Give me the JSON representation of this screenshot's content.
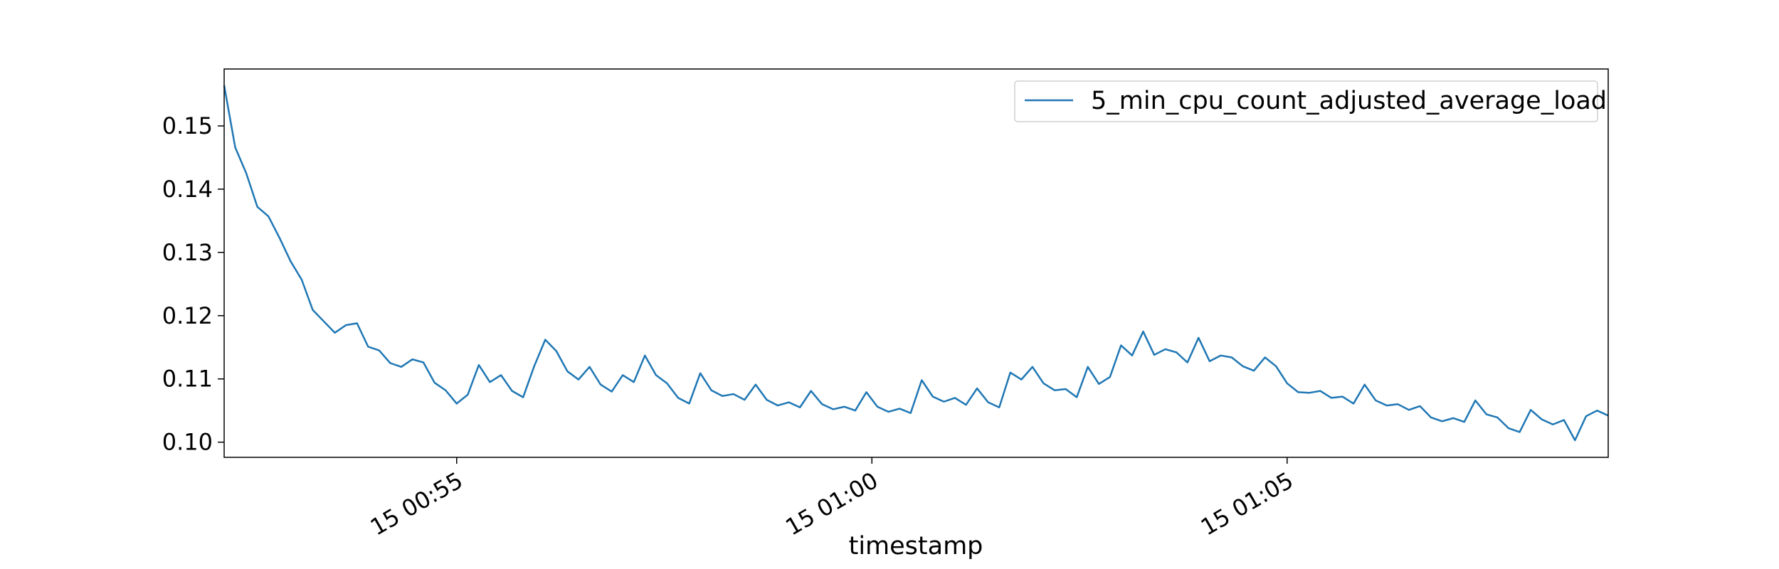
{
  "chart_data": {
    "type": "line",
    "title": "",
    "xlabel": "timestamp",
    "ylabel": "",
    "xlim": [
      "15 00:52:12",
      "15 01:08:52"
    ],
    "ylim": [
      0.0976,
      0.159
    ],
    "x_ticks": [
      {
        "value": "15 00:55:00",
        "label": "15 00:55"
      },
      {
        "value": "15 01:00:00",
        "label": "15 01:00"
      },
      {
        "value": "15 01:05:00",
        "label": "15 01:05"
      }
    ],
    "y_ticks": [
      0.1,
      0.11,
      0.12,
      0.13,
      0.14,
      0.15
    ],
    "y_tick_labels": [
      "0.10",
      "0.11",
      "0.12",
      "0.13",
      "0.14",
      "0.15"
    ],
    "grid": false,
    "legend_position": "top-right",
    "line_color": "#1f77b4",
    "x_start": "15 00:52:12",
    "x_step_seconds": 8,
    "series": [
      {
        "name": "5_min_cpu_count_adjusted_average_load",
        "values": [
          0.1564,
          0.1466,
          0.1425,
          0.1372,
          0.1357,
          0.1323,
          0.1286,
          0.1257,
          0.1209,
          0.1191,
          0.1173,
          0.1185,
          0.1188,
          0.1151,
          0.1145,
          0.1125,
          0.1119,
          0.1131,
          0.1126,
          0.1094,
          0.1082,
          0.1061,
          0.1075,
          0.1122,
          0.1095,
          0.1106,
          0.1081,
          0.1071,
          0.112,
          0.1162,
          0.1144,
          0.1112,
          0.1099,
          0.1119,
          0.1091,
          0.108,
          0.1106,
          0.1095,
          0.1137,
          0.1106,
          0.1093,
          0.107,
          0.1061,
          0.1109,
          0.1082,
          0.1073,
          0.1076,
          0.1067,
          0.1091,
          0.1067,
          0.1058,
          0.1063,
          0.1055,
          0.1081,
          0.106,
          0.1052,
          0.1056,
          0.105,
          0.1079,
          0.1056,
          0.1048,
          0.1053,
          0.1046,
          0.1098,
          0.1072,
          0.1064,
          0.107,
          0.1059,
          0.1085,
          0.1063,
          0.1055,
          0.111,
          0.1099,
          0.1119,
          0.1093,
          0.1082,
          0.1084,
          0.1071,
          0.1119,
          0.1092,
          0.1103,
          0.1153,
          0.1137,
          0.1175,
          0.1138,
          0.1147,
          0.1142,
          0.1126,
          0.1165,
          0.1128,
          0.1137,
          0.1134,
          0.112,
          0.1113,
          0.1134,
          0.112,
          0.1093,
          0.1079,
          0.1078,
          0.1081,
          0.107,
          0.1072,
          0.1061,
          0.1091,
          0.1066,
          0.1058,
          0.106,
          0.1051,
          0.1057,
          0.1039,
          0.1033,
          0.1038,
          0.1032,
          0.1066,
          0.1044,
          0.1039,
          0.1022,
          0.1016,
          0.1051,
          0.1036,
          0.1028,
          0.1035,
          0.1003,
          0.1041,
          0.105,
          0.1042
        ]
      }
    ]
  }
}
